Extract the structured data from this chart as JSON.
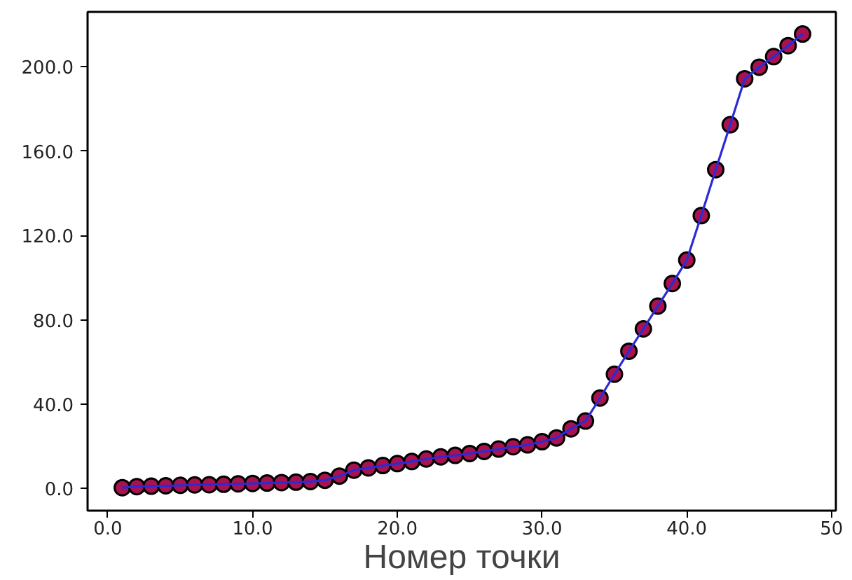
{
  "chart_data": {
    "type": "line",
    "xlabel": "Номер точки",
    "x": [
      1,
      2,
      3,
      4,
      5,
      6,
      7,
      8,
      9,
      10,
      11,
      12,
      13,
      14,
      15,
      16,
      17,
      18,
      19,
      20,
      21,
      22,
      23,
      24,
      25,
      26,
      27,
      28,
      29,
      30,
      31,
      32,
      33,
      34,
      35,
      36,
      37,
      38,
      39,
      40,
      41,
      42,
      43,
      44,
      45,
      46,
      47,
      48
    ],
    "series": [
      {
        "type": "scatter",
        "color": "#a8124e",
        "values": [
          0.4,
          0.9,
          1.1,
          1.3,
          1.5,
          1.7,
          1.8,
          2.0,
          2.2,
          2.4,
          2.6,
          2.8,
          3.0,
          3.3,
          3.9,
          5.9,
          8.7,
          9.8,
          10.9,
          11.8,
          12.8,
          14.0,
          15.0,
          15.7,
          16.6,
          17.6,
          18.7,
          19.8,
          20.7,
          22.2,
          24.0,
          28.3,
          32.0,
          42.9,
          54.2,
          65.1,
          75.7,
          86.5,
          97.2,
          108.3,
          129.4,
          151.2,
          172.5,
          194.3,
          199.8,
          204.8,
          210.0,
          215.5
        ]
      },
      {
        "marker": "none",
        "color": "#2b2bd6",
        "values": [
          0.4,
          0.9,
          1.1,
          1.3,
          1.5,
          1.7,
          1.8,
          2.0,
          2.2,
          2.4,
          2.6,
          2.8,
          3.0,
          3.3,
          3.9,
          5.9,
          8.7,
          9.8,
          10.9,
          11.8,
          12.8,
          14.0,
          15.0,
          15.7,
          16.6,
          17.6,
          18.7,
          19.8,
          20.7,
          22.2,
          24.0,
          28.3,
          32.0,
          42.9,
          54.2,
          65.1,
          75.7,
          86.5,
          97.2,
          108.3,
          129.4,
          151.2,
          172.5,
          194.3,
          199.8,
          204.8,
          210.0,
          215.5
        ]
      }
    ],
    "xlim": [
      -1.4,
      50.3
    ],
    "ylim": [
      -10.5,
      226
    ],
    "xticks": [
      {
        "value": 0,
        "label": "0.0"
      },
      {
        "value": 10,
        "label": "10.0"
      },
      {
        "value": 20,
        "label": "20.0"
      },
      {
        "value": 30,
        "label": "30.0"
      },
      {
        "value": 40,
        "label": "40.0"
      },
      {
        "value": 50,
        "label": "50"
      }
    ],
    "yticks": [
      {
        "value": 0,
        "label": "0.0"
      },
      {
        "value": 40,
        "label": "40.0"
      },
      {
        "value": 80,
        "label": "80.0"
      },
      {
        "value": 120,
        "label": "120.0"
      },
      {
        "value": 160,
        "label": "160.0"
      },
      {
        "value": 200,
        "label": "200.0"
      }
    ],
    "grid": false,
    "marker": "circle",
    "line_style": "solid"
  }
}
